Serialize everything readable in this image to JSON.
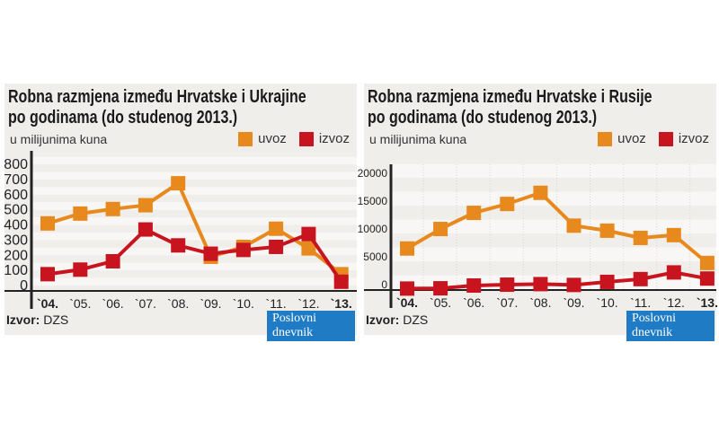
{
  "colors": {
    "uvoz": "#e8891d",
    "izvoz": "#c8141e",
    "logo_bg": "#1f7cc4"
  },
  "chart_data": [
    {
      "type": "line",
      "title": "Robna razmjena između Hrvatske i Ukrajine",
      "title_line2": "po godinama (do studenog 2013.)",
      "unit": "u milijunima kuna",
      "categories": [
        "`04.",
        "`05.",
        "`06.",
        "`07.",
        "`08.",
        "`09.",
        "`10.",
        "`11.",
        "`12.",
        "`13."
      ],
      "yticks": [
        0,
        100,
        200,
        300,
        400,
        500,
        600,
        700,
        800
      ],
      "ylim": [
        0,
        800
      ],
      "series": [
        {
          "name": "uvoz",
          "values": [
            410,
            475,
            505,
            530,
            675,
            190,
            255,
            375,
            245,
            75
          ]
        },
        {
          "name": "izvoz",
          "values": [
            75,
            105,
            160,
            370,
            265,
            210,
            235,
            255,
            340,
            25
          ]
        }
      ],
      "legend": "top-right",
      "grid": "horizontal bands"
    },
    {
      "type": "line",
      "title": "Robna razmjena između Hrvatske i Rusije",
      "title_line2": "po godinama (do studenog 2013.)",
      "unit": "u milijunima kuna",
      "categories": [
        "`04.",
        "`05.",
        "`06.",
        "`07.",
        "`08.",
        "`09.",
        "`10.",
        "`11.",
        "`12.",
        "`13."
      ],
      "yticks": [
        0,
        5000,
        10000,
        15000,
        20000
      ],
      "ylim": [
        0,
        20000
      ],
      "series": [
        {
          "name": "uvoz",
          "values": [
            7300,
            10800,
            13700,
            15300,
            17300,
            11400,
            10500,
            9200,
            9700,
            4700
          ]
        },
        {
          "name": "izvoz",
          "values": [
            100,
            150,
            650,
            800,
            900,
            750,
            1300,
            1800,
            3000,
            1900
          ]
        }
      ],
      "legend": "top-right",
      "grid": "horizontal bands"
    }
  ],
  "footer": {
    "source_label": "Izvor:",
    "source": "DZS",
    "logo": "Poslovni dnevnik"
  }
}
